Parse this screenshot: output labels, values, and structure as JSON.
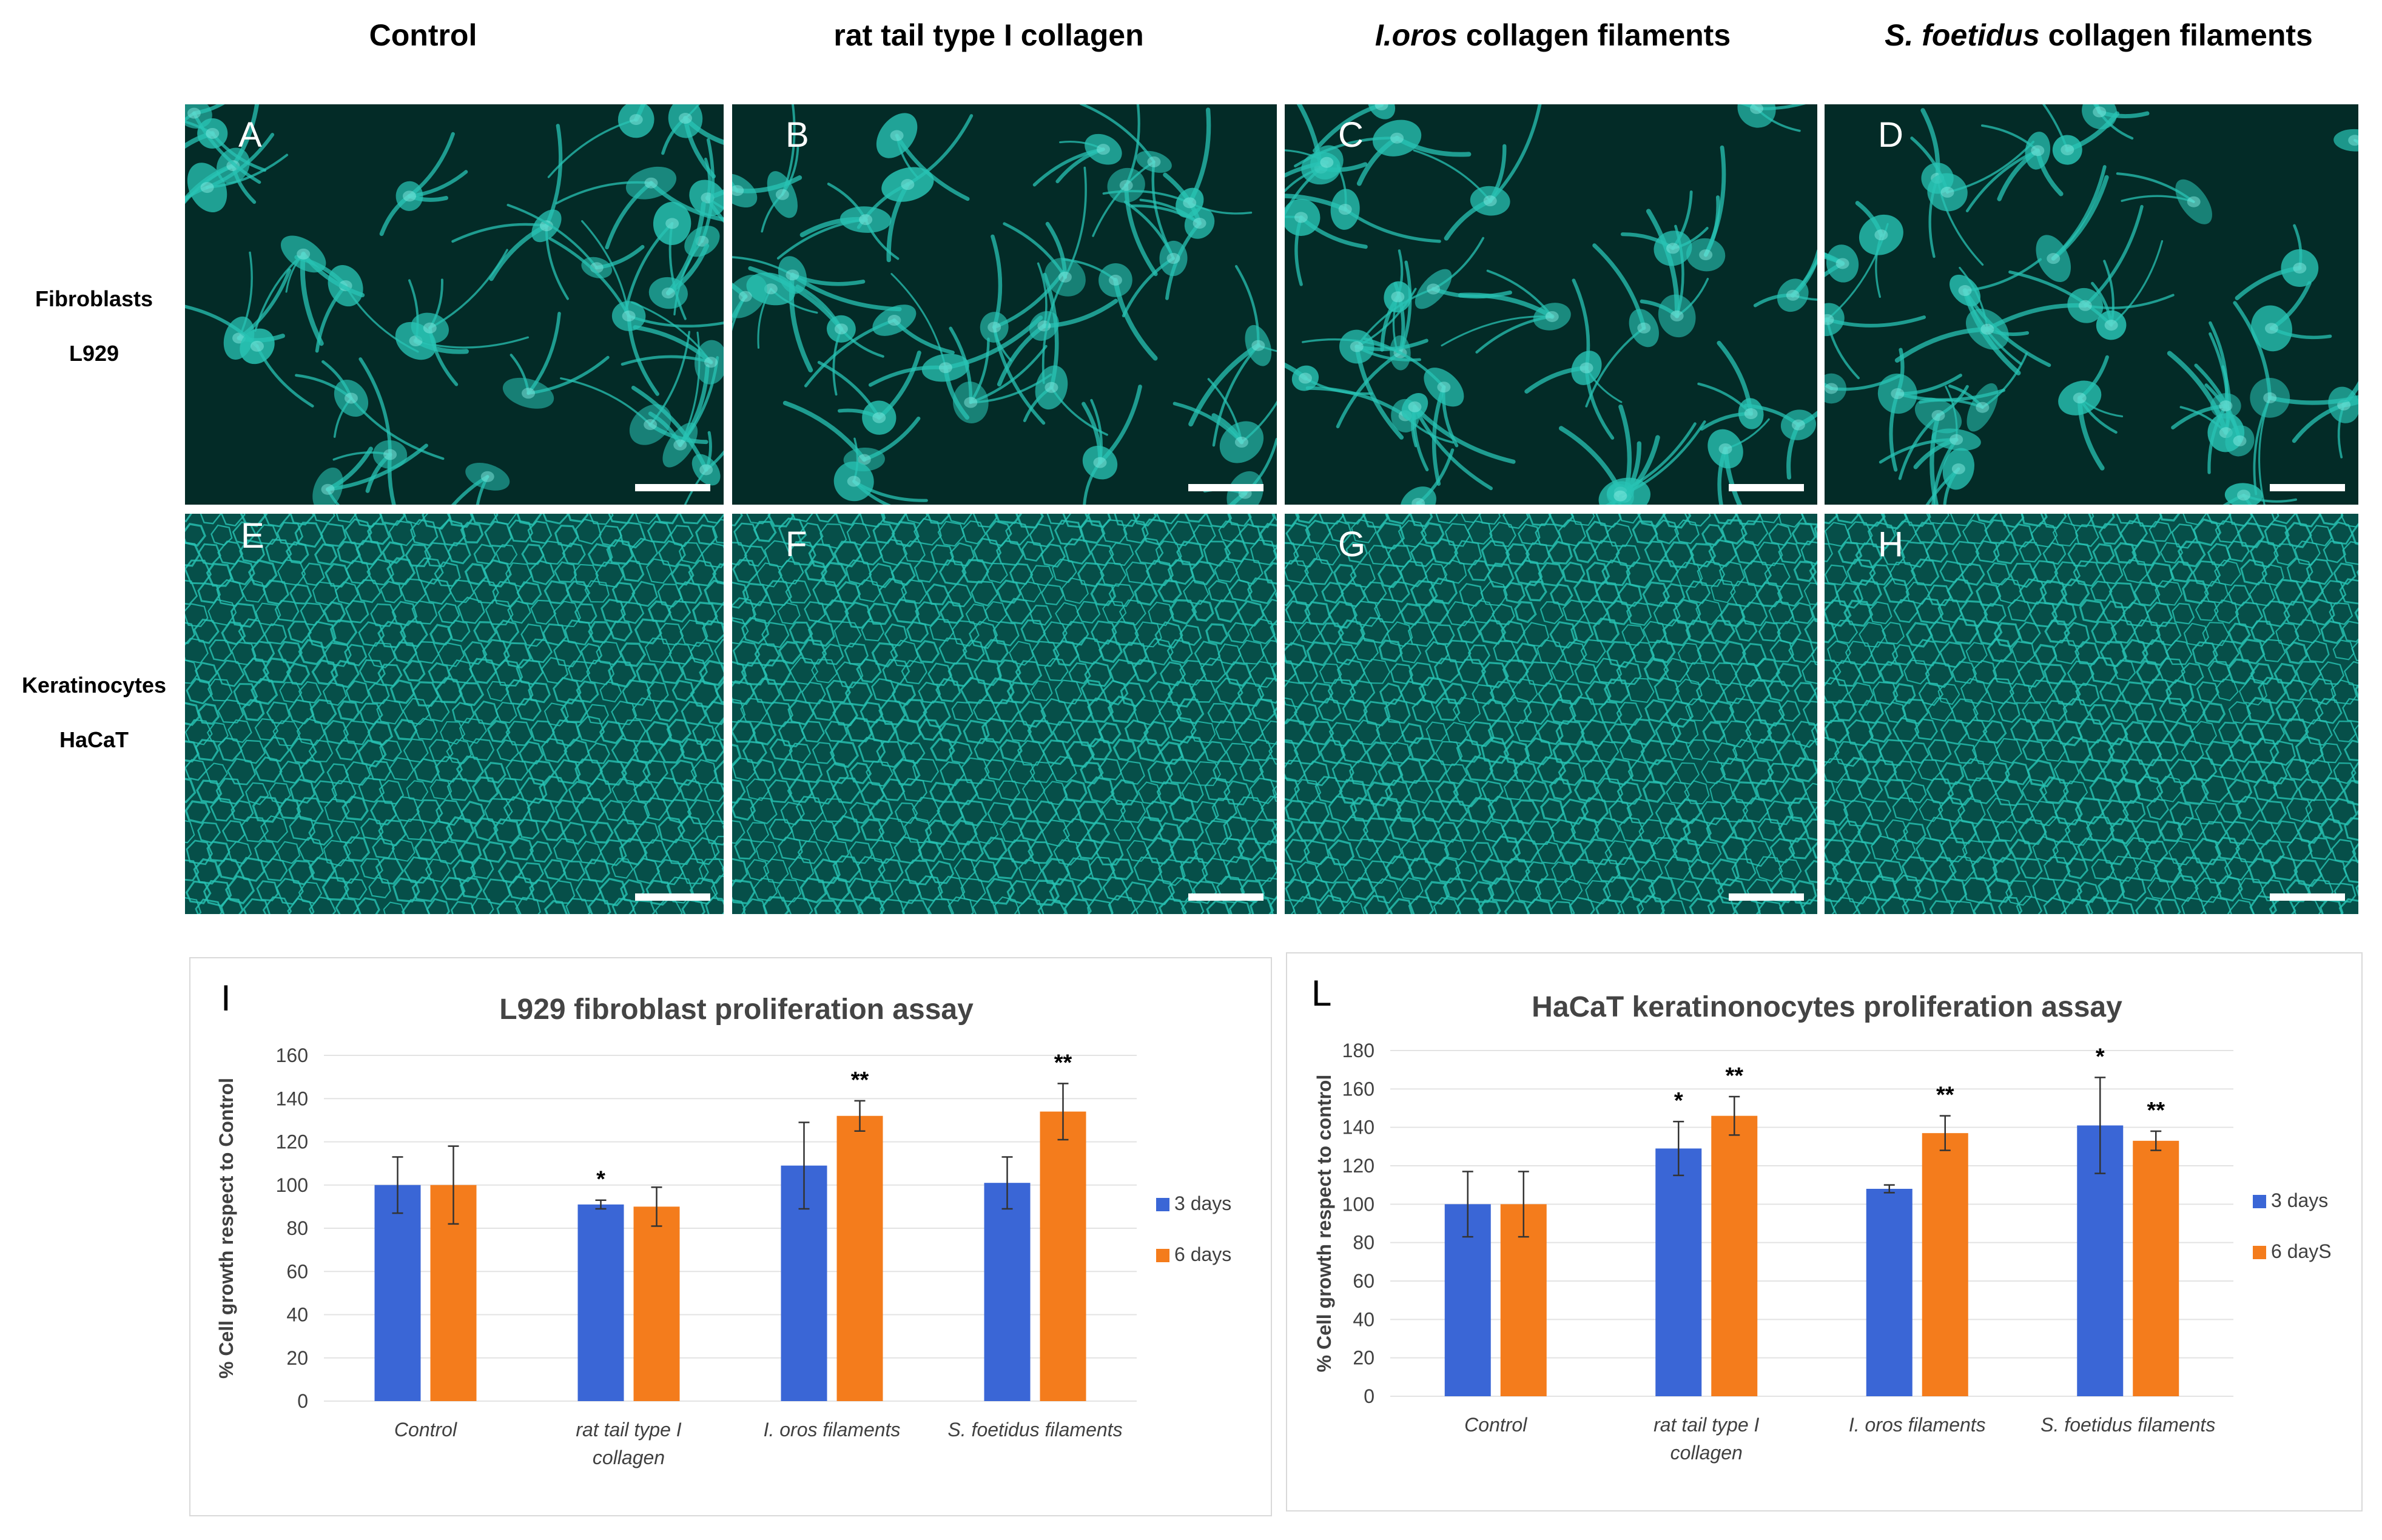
{
  "column_headers": [
    {
      "italic": "",
      "normal": "Control"
    },
    {
      "italic": "",
      "normal": "rat tail  type I collagen"
    },
    {
      "italic": "I.oros",
      "normal": " collagen filaments"
    },
    {
      "italic": "S. foetidus",
      "normal": " collagen filaments"
    }
  ],
  "row_labels": [
    {
      "line1": "Fibroblasts",
      "line2": "L929"
    },
    {
      "line1": "Keratinocytes",
      "line2": "HaCaT"
    }
  ],
  "panel_labels": [
    "A",
    "B",
    "C",
    "D",
    "E",
    "F",
    "G",
    "H"
  ],
  "colors": {
    "series_3days": "#3a66d6",
    "series_6days": "#f47c1c",
    "cell_fill": "#28c3b4",
    "panel_background": "#032b27",
    "gridline": "#e3e3e3"
  },
  "chart_data": [
    {
      "type": "bar",
      "panel_letter": "I",
      "title": "L929 fibroblast  proliferation assay",
      "ylabel": "% Cell growth respect to Control",
      "xlabel": "",
      "ylim": [
        0,
        160
      ],
      "yticks": [
        0,
        20,
        40,
        60,
        80,
        100,
        120,
        140,
        160
      ],
      "categories": [
        [
          "Control"
        ],
        [
          "rat tail type I",
          "collagen"
        ],
        [
          "I. oros filaments"
        ],
        [
          "S. foetidus filaments"
        ]
      ],
      "series": [
        {
          "name": "3 days",
          "values": [
            100,
            91,
            109,
            101
          ],
          "errors": [
            13,
            2,
            20,
            12
          ],
          "marks": [
            "",
            "*",
            "",
            ""
          ]
        },
        {
          "name": "6 days",
          "values": [
            100,
            90,
            132,
            134
          ],
          "errors": [
            18,
            9,
            7,
            13
          ],
          "marks": [
            "",
            "",
            "**",
            "**"
          ]
        }
      ],
      "legend": "right",
      "grid": true
    },
    {
      "type": "bar",
      "panel_letter": "L",
      "title": "HaCaT keratinonocytes  proliferation assay",
      "ylabel": "% Cell growth respect to control",
      "xlabel": "",
      "ylim": [
        0,
        180
      ],
      "yticks": [
        0,
        20,
        40,
        60,
        80,
        100,
        120,
        140,
        160,
        180
      ],
      "categories": [
        [
          "Control"
        ],
        [
          "rat tail type I",
          "collagen"
        ],
        [
          "I. oros filaments"
        ],
        [
          "S. foetidus filaments"
        ]
      ],
      "series": [
        {
          "name": "3 days",
          "values": [
            100,
            129,
            108,
            141
          ],
          "errors": [
            17,
            14,
            2,
            25
          ],
          "marks": [
            "",
            "*",
            "",
            "*"
          ]
        },
        {
          "name": "6 dayS",
          "values": [
            100,
            146,
            137,
            133
          ],
          "errors": [
            17,
            10,
            9,
            5
          ],
          "marks": [
            "",
            "**",
            "**",
            "**"
          ]
        }
      ],
      "legend": "right",
      "grid": true
    }
  ]
}
